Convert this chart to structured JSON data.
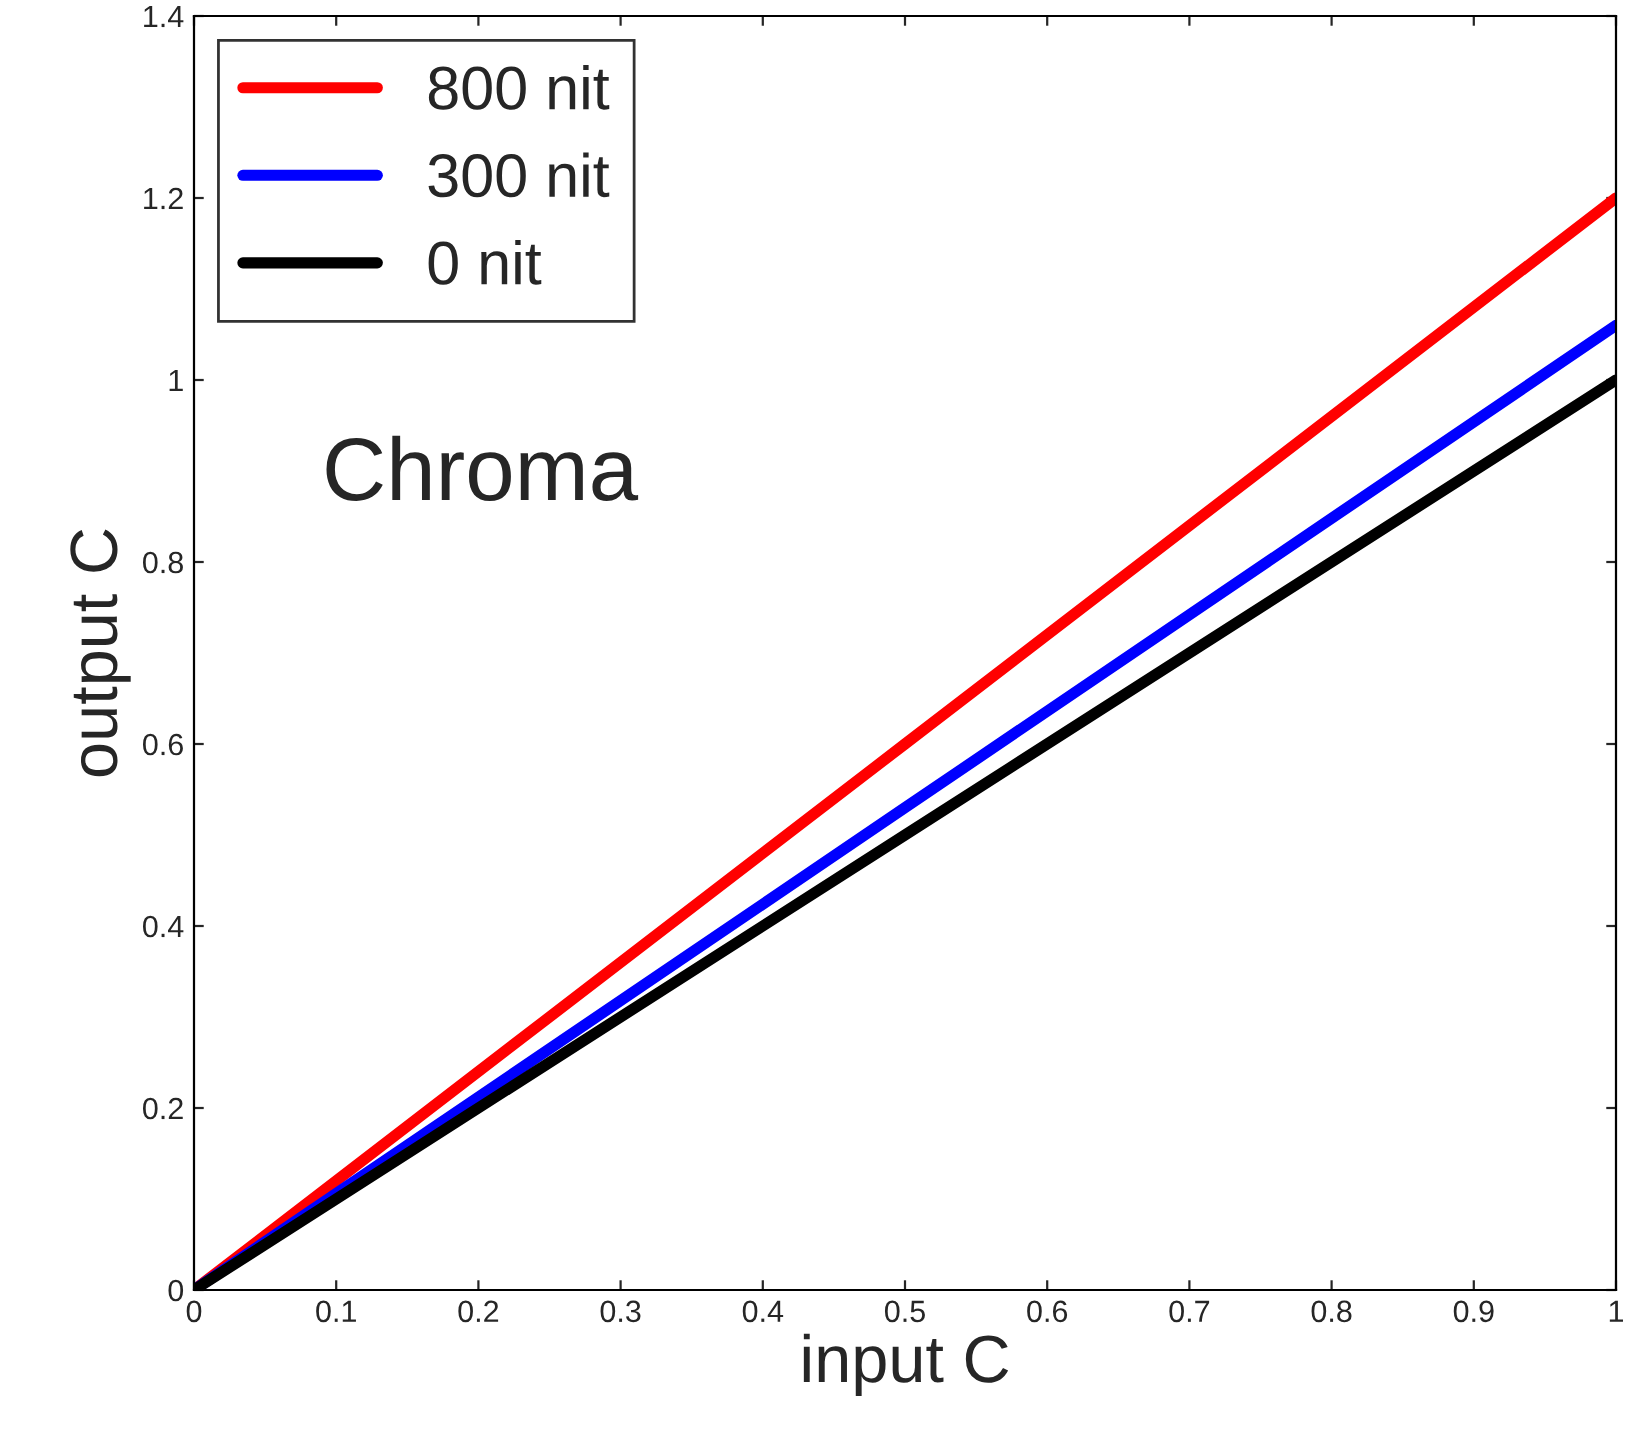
{
  "chart_data": {
    "type": "line",
    "xlabel": "input C",
    "ylabel": "output C",
    "annotations": [
      "Chroma"
    ],
    "series": [
      {
        "name": "800 nit",
        "color": "#ff0000",
        "x": [
          0,
          0.5,
          1
        ],
        "values": [
          0,
          0.6,
          1.2
        ]
      },
      {
        "name": "300 nit",
        "color": "#0000ff",
        "x": [
          0,
          0.5,
          1
        ],
        "values": [
          0,
          0.53,
          1.06
        ]
      },
      {
        "name": "0 nit",
        "color": "#000000",
        "x": [
          0,
          0.5,
          1
        ],
        "values": [
          0,
          0.5,
          1.0
        ]
      }
    ],
    "xlim": [
      0,
      1
    ],
    "ylim": [
      0,
      1.4
    ],
    "xticks": [
      0,
      0.1,
      0.2,
      0.3,
      0.4,
      0.5,
      0.6,
      0.7,
      0.8,
      0.9,
      1
    ],
    "yticks": [
      0,
      0.2,
      0.4,
      0.6,
      0.8,
      1,
      1.2,
      1.4
    ],
    "legend": "top left",
    "grid": false,
    "marker": "none",
    "line_style": "solid"
  }
}
